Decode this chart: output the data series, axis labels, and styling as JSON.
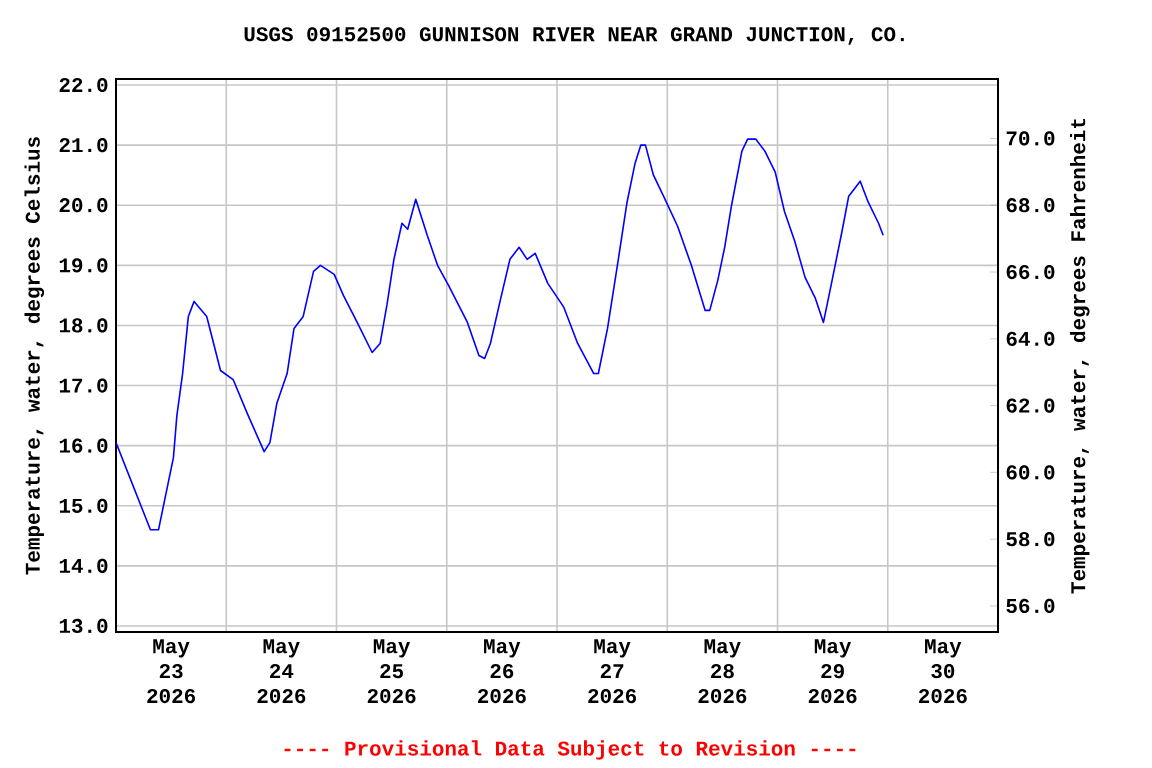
{
  "chart_data": {
    "type": "line",
    "title": "USGS 09152500 GUNNISON RIVER NEAR GRAND JUNCTION, CO.",
    "ylabel": "Temperature, water, degrees Celsius",
    "y2label": "Temperature, water, degrees Fahrenheit",
    "annotations": [
      "---- Provisional Data Subject to Revision ----"
    ],
    "color": "#0000ff",
    "x": [
      "2026-05-23T00:00",
      "2026-05-23T07:30",
      "2026-05-23T09:15",
      "2026-05-23T12:30",
      "2026-05-23T13:15",
      "2026-05-23T14:30",
      "2026-05-23T15:45",
      "2026-05-23T17:00",
      "2026-05-23T19:45",
      "2026-05-23T22:45",
      "2026-05-24T01:30",
      "2026-05-24T04:30",
      "2026-05-24T08:15",
      "2026-05-24T09:30",
      "2026-05-24T11:00",
      "2026-05-24T13:15",
      "2026-05-24T14:45",
      "2026-05-24T16:45",
      "2026-05-24T19:00",
      "2026-05-24T20:30",
      "2026-05-24T23:30",
      "2026-05-25T01:30",
      "2026-05-25T04:30",
      "2026-05-25T07:45",
      "2026-05-25T09:30",
      "2026-05-25T11:00",
      "2026-05-25T12:30",
      "2026-05-25T14:15",
      "2026-05-25T15:30",
      "2026-05-25T17:15",
      "2026-05-25T19:45",
      "2026-05-25T22:00",
      "2026-05-26T00:30",
      "2026-05-26T04:30",
      "2026-05-26T07:00",
      "2026-05-26T08:15",
      "2026-05-26T09:30",
      "2026-05-26T11:45",
      "2026-05-26T13:45",
      "2026-05-26T15:45",
      "2026-05-26T17:30",
      "2026-05-26T19:15",
      "2026-05-26T22:00",
      "2026-05-27T01:30",
      "2026-05-27T04:30",
      "2026-05-27T08:00",
      "2026-05-27T09:00",
      "2026-05-27T11:00",
      "2026-05-27T13:15",
      "2026-05-27T15:15",
      "2026-05-27T17:00",
      "2026-05-27T18:15",
      "2026-05-27T19:15",
      "2026-05-27T21:00",
      "2026-05-27T23:30",
      "2026-05-28T02:15",
      "2026-05-28T05:15",
      "2026-05-28T08:15",
      "2026-05-28T09:15",
      "2026-05-28T11:00",
      "2026-05-28T12:30",
      "2026-05-28T14:00",
      "2026-05-28T16:15",
      "2026-05-28T17:30",
      "2026-05-28T19:15",
      "2026-05-28T21:15",
      "2026-05-28T23:30",
      "2026-05-29T01:30",
      "2026-05-29T03:45",
      "2026-05-29T06:00",
      "2026-05-29T08:15",
      "2026-05-29T10:00",
      "2026-05-29T11:45",
      "2026-05-29T14:00",
      "2026-05-29T15:30",
      "2026-05-29T18:00",
      "2026-05-29T19:45",
      "2026-05-29T22:00",
      "2026-05-29T23:00"
    ],
    "values": [
      16.05,
      14.6,
      14.6,
      15.8,
      16.5,
      17.2,
      18.15,
      18.4,
      18.15,
      17.25,
      17.1,
      16.55,
      15.9,
      16.05,
      16.7,
      17.2,
      17.95,
      18.15,
      18.9,
      19.0,
      18.85,
      18.5,
      18.05,
      17.55,
      17.7,
      18.35,
      19.1,
      19.7,
      19.6,
      20.1,
      19.5,
      19.0,
      18.65,
      18.05,
      17.5,
      17.45,
      17.7,
      18.45,
      19.1,
      19.3,
      19.1,
      19.2,
      18.7,
      18.3,
      17.7,
      17.2,
      17.2,
      17.95,
      19.05,
      20.05,
      20.7,
      21.0,
      21.0,
      20.5,
      20.1,
      19.65,
      19.0,
      18.25,
      18.25,
      18.75,
      19.3,
      20.0,
      20.9,
      21.1,
      21.1,
      20.9,
      20.55,
      19.9,
      19.4,
      18.8,
      18.45,
      18.05,
      18.7,
      19.55,
      20.15,
      20.4,
      20.05,
      19.7,
      19.5
    ],
    "xlim": [
      "2026-05-23T00:00",
      "2026-05-31T00:00"
    ],
    "xticks": [
      {
        "value": "2026-05-23T12:00",
        "label": "May 23 2026"
      },
      {
        "value": "2026-05-24T12:00",
        "label": "May 24 2026"
      },
      {
        "value": "2026-05-25T12:00",
        "label": "May 25 2026"
      },
      {
        "value": "2026-05-26T12:00",
        "label": "May 26 2026"
      },
      {
        "value": "2026-05-27T12:00",
        "label": "May 27 2026"
      },
      {
        "value": "2026-05-28T12:00",
        "label": "May 28 2026"
      },
      {
        "value": "2026-05-29T12:00",
        "label": "May 29 2026"
      },
      {
        "value": "2026-05-30T12:00",
        "label": "May 30 2026"
      },
      {
        "value": "2026-05-24T00:00",
        "label": null
      },
      {
        "value": "2026-05-25T00:00",
        "label": null
      },
      {
        "value": "2026-05-26T00:00",
        "label": null
      },
      {
        "value": "2026-05-27T00:00",
        "label": null
      },
      {
        "value": "2026-05-28T00:00",
        "label": null
      },
      {
        "value": "2026-05-29T00:00",
        "label": null
      },
      {
        "value": "2026-05-30T00:00",
        "label": null
      }
    ],
    "ylim": [
      12.9,
      22.1
    ],
    "yticks": [
      {
        "value": 13,
        "label": "13.0"
      },
      {
        "value": 14,
        "label": "14.0"
      },
      {
        "value": 15,
        "label": "15.0"
      },
      {
        "value": 16,
        "label": "16.0"
      },
      {
        "value": 17,
        "label": "17.0"
      },
      {
        "value": 18,
        "label": "18.0"
      },
      {
        "value": 19,
        "label": "19.0"
      },
      {
        "value": 20,
        "label": "20.0"
      },
      {
        "value": 21,
        "label": "21.0"
      },
      {
        "value": 22,
        "label": "22.0"
      }
    ],
    "y2lim": [
      55.22,
      71.78
    ],
    "y2ticks": [
      {
        "value": 56,
        "label": "56.0"
      },
      {
        "value": 58,
        "label": "58.0"
      },
      {
        "value": 60,
        "label": "60.0"
      },
      {
        "value": 62,
        "label": "62.0"
      },
      {
        "value": 64,
        "label": "64.0"
      },
      {
        "value": 66,
        "label": "66.0"
      },
      {
        "value": 68,
        "label": "68.0"
      },
      {
        "value": 70,
        "label": "70.0"
      }
    ],
    "grid": true
  }
}
